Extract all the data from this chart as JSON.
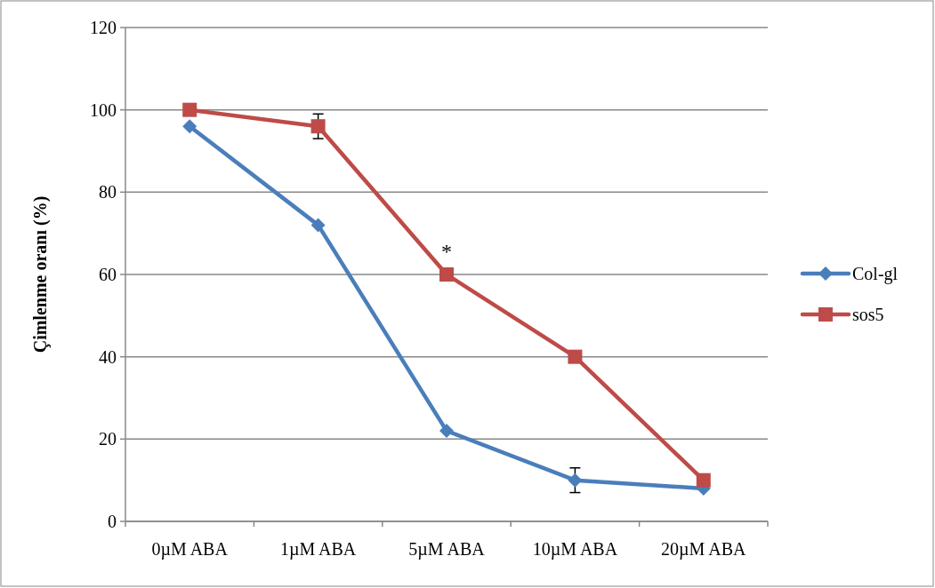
{
  "chart_data": {
    "type": "line",
    "ylabel": "Çimlenme oranı (%)",
    "categories": [
      "0µM ABA",
      "1µM ABA",
      "5µM ABA",
      "10µM ABA",
      "20µM ABA"
    ],
    "series": [
      {
        "name": "Col-gl",
        "color": "#4a7ebb",
        "marker": "diamond",
        "values": [
          96,
          72,
          22,
          10,
          8
        ],
        "errors": [
          null,
          null,
          null,
          3,
          null
        ]
      },
      {
        "name": "sos5",
        "color": "#be4b48",
        "marker": "square",
        "values": [
          100,
          96,
          60,
          40,
          10
        ],
        "errors": [
          null,
          3,
          null,
          null,
          null
        ]
      }
    ],
    "ylim": [
      0,
      120
    ],
    "yticks": [
      0,
      20,
      40,
      60,
      80,
      100,
      120
    ],
    "grid": "y",
    "legend": "right",
    "annotations": [
      {
        "text": "*",
        "x": "5µM ABA",
        "y": 60
      }
    ]
  }
}
